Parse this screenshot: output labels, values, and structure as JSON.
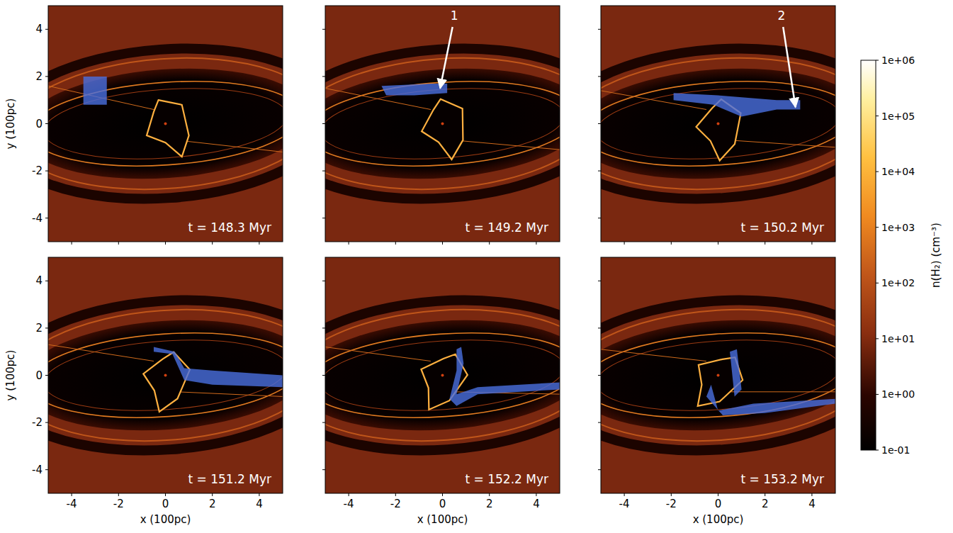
{
  "chart_data": {
    "type": "image_grid",
    "xlabel": "x (100pc)",
    "ylabel": "y (100pc)",
    "xlim": [
      -5,
      5
    ],
    "ylim": [
      -5,
      5
    ],
    "xticks": [
      -4,
      -2,
      0,
      2,
      4
    ],
    "yticks": [
      -4,
      -2,
      0,
      2,
      4
    ],
    "panels": [
      {
        "title": "t = 148.3 Myr"
      },
      {
        "title": "t = 149.2 Myr"
      },
      {
        "title": "t = 150.2 Myr"
      },
      {
        "title": "t = 151.2 Myr"
      },
      {
        "title": "t = 152.2 Myr"
      },
      {
        "title": "t = 153.2 Myr"
      }
    ],
    "annotations": [
      {
        "panel": 1,
        "text": "1",
        "xy": [
          -0.1,
          1.5
        ],
        "xytext": [
          0.5,
          4.4
        ]
      },
      {
        "panel": 2,
        "text": "2",
        "xy": [
          3.3,
          0.7
        ],
        "xytext": [
          2.7,
          4.4
        ]
      }
    ],
    "colorbar": {
      "label": "n(H₂) (cm⁻³)",
      "log": true,
      "lim": [
        0.1,
        1000000
      ],
      "ticks": [
        {
          "value": 0.1,
          "label": "1e-01"
        },
        {
          "value": 1,
          "label": "1e+00"
        },
        {
          "value": 10,
          "label": "1e+01"
        },
        {
          "value": 100,
          "label": "1e+02"
        },
        {
          "value": 1000,
          "label": "1e+03"
        },
        {
          "value": 10000,
          "label": "1e+04"
        },
        {
          "value": 100000,
          "label": "1e+05"
        },
        {
          "value": 1000000,
          "label": "1e+06"
        }
      ]
    }
  }
}
